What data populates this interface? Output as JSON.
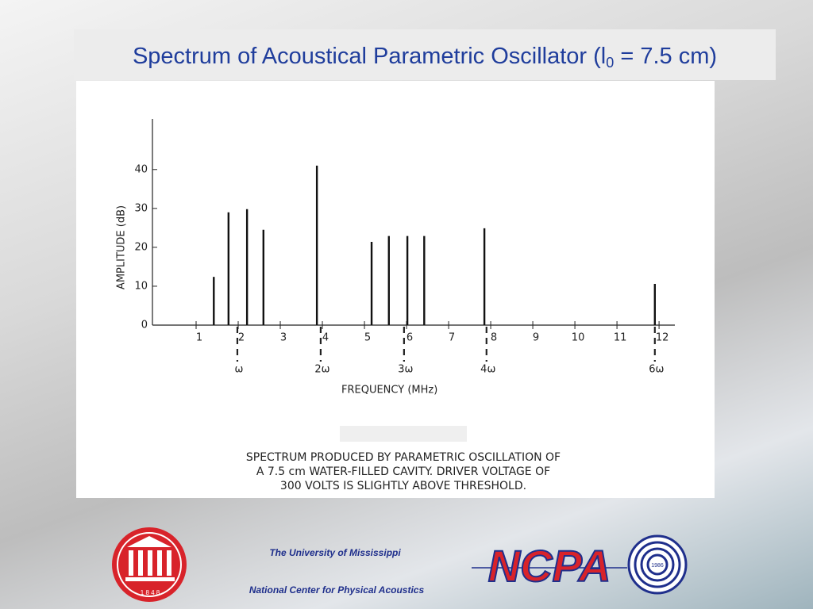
{
  "chart_data": {
    "type": "stem",
    "title_before": "Spectrum of Acoustical Parametric Oscillator (l",
    "title_subscript": "0",
    "title_after": " = 7.5 cm)",
    "x_label": "FREQUENCY (MHz)",
    "y_label": "AMPLITUDE (dB)",
    "x": [
      1.42,
      1.77,
      2.21,
      2.6,
      3.87,
      5.17,
      5.58,
      6.02,
      6.42,
      7.85,
      11.9
    ],
    "values": [
      12.4,
      29,
      29.8,
      24.5,
      41,
      21.4,
      22.9,
      22.9,
      22.9,
      24.9,
      10.6
    ],
    "color": "#111111",
    "xlim": [
      0,
      12.3
    ],
    "ylim": [
      0,
      53
    ],
    "xticks": [
      1,
      2,
      3,
      4,
      5,
      6,
      7,
      8,
      9,
      10,
      11,
      12
    ],
    "yticks": [
      0,
      10,
      20,
      30,
      40
    ],
    "grid": false,
    "harmonics": [
      {
        "x": 1.98,
        "label": "ω"
      },
      {
        "x": 3.96,
        "label": "2ω"
      },
      {
        "x": 5.94,
        "label": "3ω"
      },
      {
        "x": 7.9,
        "label": "4ω"
      },
      {
        "x": 11.9,
        "label": "6ω"
      }
    ],
    "caption": [
      "SPECTRUM PRODUCED BY PARAMETRIC OSCILLATION OF",
      "A 7.5 cm WATER-FILLED CAVITY. DRIVER VOLTAGE OF",
      "300 VOLTS IS SLIGHTLY ABOVE THRESHOLD."
    ]
  },
  "footer": {
    "university": "The University of Mississippi",
    "center": "National Center for Physical Acoustics",
    "seal_year": "1 8 4 8",
    "logo": "NCPA",
    "logo_year": "1986"
  }
}
